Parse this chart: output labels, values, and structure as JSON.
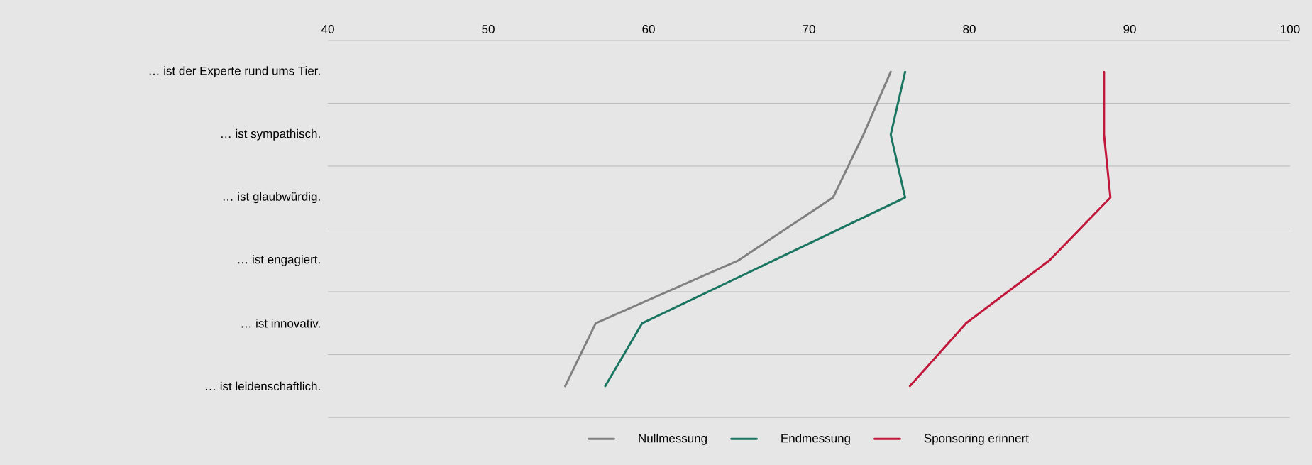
{
  "chart_data": {
    "type": "line",
    "orientation": "horizontal",
    "categories": [
      "… ist der Experte rund ums Tier.",
      "… ist sympathisch.",
      "… ist glaubwürdig.",
      "… ist engagiert.",
      "… ist innovativ.",
      "… ist leidenschaftlich."
    ],
    "series": [
      {
        "name": "Nullmessung",
        "color": "#808080",
        "values": [
          75.1,
          73.4,
          71.5,
          65.6,
          56.7,
          54.8
        ]
      },
      {
        "name": "Endmessung",
        "color": "#1a7561",
        "values": [
          76.0,
          75.1,
          76.0,
          67.8,
          59.6,
          57.3
        ]
      },
      {
        "name": "Sponsoring erinnert",
        "color": "#c0173b",
        "values": [
          88.4,
          88.4,
          88.8,
          85.0,
          79.8,
          76.3
        ]
      }
    ],
    "xlim": [
      40,
      100
    ],
    "xticks": [
      40,
      50,
      60,
      70,
      80,
      90,
      100
    ],
    "grid": "y",
    "legend": "bottom",
    "marker": "none",
    "line_style": "solid"
  }
}
